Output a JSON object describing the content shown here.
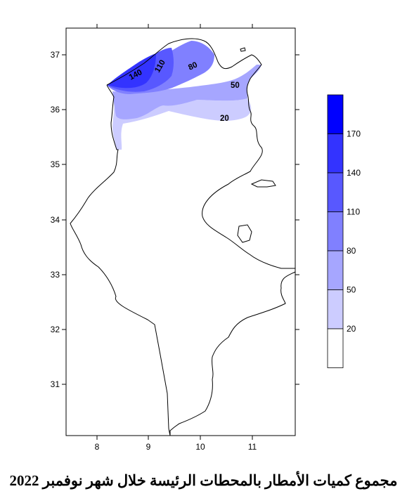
{
  "map": {
    "x_ticks": [
      "8",
      "9",
      "10",
      "11"
    ],
    "y_ticks": [
      "37",
      "36",
      "35",
      "34",
      "33",
      "32",
      "31"
    ],
    "contour_labels": [
      "140",
      "110",
      "80",
      "50",
      "20"
    ]
  },
  "legend": {
    "colors": [
      "#0000FF",
      "#3333FF",
      "#5858FF",
      "#8080FF",
      "#A6A6FF",
      "#CCCCFF",
      "#FFFFFF"
    ],
    "labels": [
      "170",
      "140",
      "110",
      "80",
      "50",
      "20"
    ]
  },
  "caption": "مجموع كميات الأمطار بالمحطات الرئيسة خلال شهر نوفمبر 2022"
}
